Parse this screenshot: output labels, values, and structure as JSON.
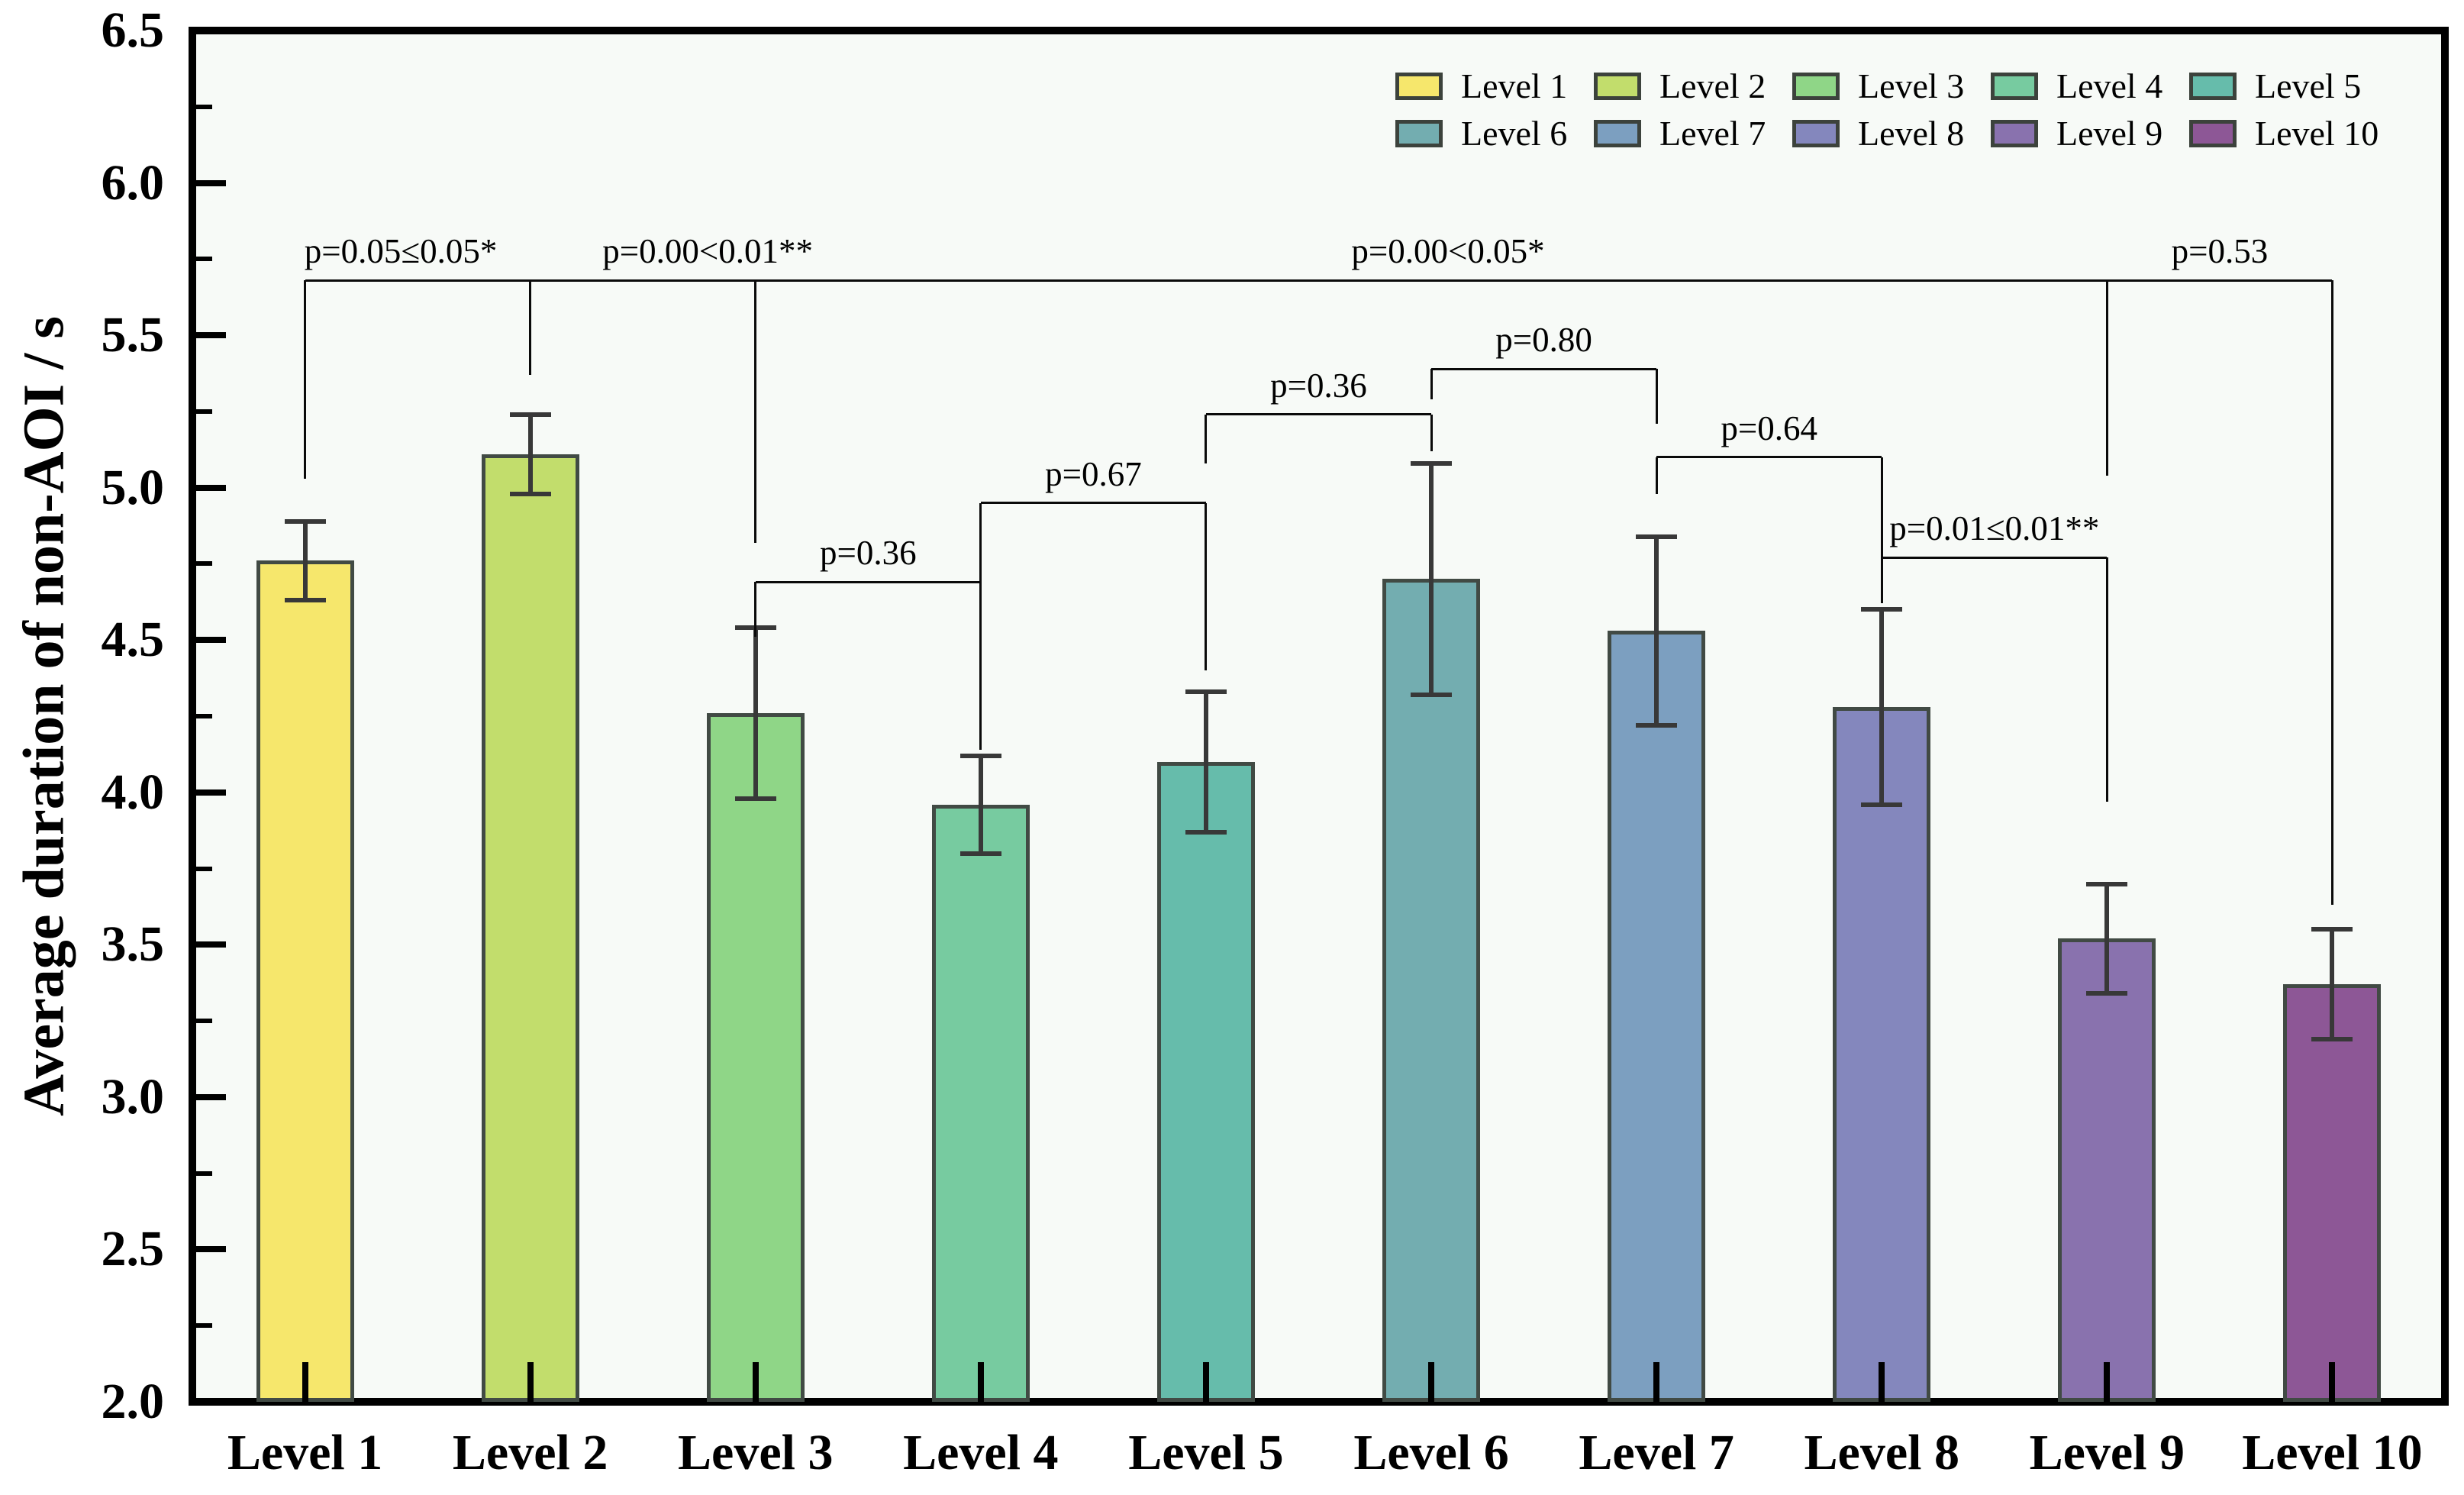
{
  "chart_data": {
    "type": "bar",
    "title": "",
    "ylabel": "Average duration of non-AOI / s",
    "xlabel": "",
    "ylim": [
      2.0,
      6.5
    ],
    "ytick_step": 0.5,
    "ytick_minor_step": 0.25,
    "grid": false,
    "legend_position": "top-right-two-rows",
    "categories": [
      "Level 1",
      "Level 2",
      "Level 3",
      "Level 4",
      "Level 5",
      "Level 6",
      "Level 7",
      "Level 8",
      "Level 9",
      "Level 10"
    ],
    "values": [
      4.76,
      5.11,
      4.26,
      3.96,
      4.1,
      4.7,
      4.53,
      4.28,
      3.52,
      3.37
    ],
    "errors": [
      0.13,
      0.13,
      0.28,
      0.16,
      0.23,
      0.38,
      0.31,
      0.32,
      0.18,
      0.18
    ],
    "bar_colors": [
      "#f6e76c",
      "#c2dd6c",
      "#8fd687",
      "#77cba0",
      "#66bcab",
      "#73adb0",
      "#7c9fc0",
      "#8487bd",
      "#8972ae",
      "#8d5796"
    ],
    "legend_entries": [
      "Level 1",
      "Level 2",
      "Level 3",
      "Level 4",
      "Level 5",
      "Level 6",
      "Level 7",
      "Level 8",
      "Level 9",
      "Level 10"
    ],
    "significance_brackets": [
      {
        "from": 1,
        "to": 2,
        "label": "p=0.05≤0.05*",
        "line_v": 5.68,
        "left_end_v": 5.03,
        "right_end_v": 5.37,
        "label_dx": -22
      },
      {
        "from": 2,
        "to": 3,
        "label": "p=0.00<0.01**",
        "line_v": 5.68,
        "left_end_v": 5.37,
        "right_end_v": 4.82,
        "label_dx": 85
      },
      {
        "from": 3,
        "to": 9,
        "label": "p=0.00<0.05*",
        "line_v": 5.68,
        "left_end_v": 4.82,
        "right_end_v": 5.04,
        "label_dx": 22
      },
      {
        "from": 9,
        "to": 10,
        "label": "p=0.53",
        "line_v": 5.68,
        "left_end_v": 5.04,
        "right_end_v": 3.63,
        "label_dx": 0
      },
      {
        "from": 3,
        "to": 4,
        "label": "p=0.36",
        "line_v": 4.69,
        "left_end_v": 4.51,
        "right_end_v": 4.14,
        "label_dx": 0
      },
      {
        "from": 4,
        "to": 5,
        "label": "p=0.67",
        "line_v": 4.95,
        "left_end_v": 4.14,
        "right_end_v": 4.4,
        "label_dx": 0
      },
      {
        "from": 5,
        "to": 6,
        "label": "p=0.36",
        "line_v": 5.24,
        "left_end_v": 5.08,
        "right_end_v": 5.12,
        "label_dx": 0
      },
      {
        "from": 6,
        "to": 7,
        "label": "p=0.80",
        "line_v": 5.39,
        "left_end_v": 5.29,
        "right_end_v": 5.21,
        "label_dx": 0
      },
      {
        "from": 7,
        "to": 8,
        "label": "p=0.64",
        "line_v": 5.1,
        "left_end_v": 4.98,
        "right_end_v": 4.62,
        "label_dx": 0
      },
      {
        "from": 8,
        "to": 9,
        "label": "p=0.01≤0.01**",
        "line_v": 4.77,
        "left_end_v": 4.64,
        "right_end_v": 3.97,
        "label_dx": 0
      }
    ]
  },
  "style": {
    "plot_bg": "#f7faf7",
    "page_bg": "#ffffff",
    "frame_color": "#000000",
    "bar_edge_color": "#414a44",
    "error_color": "#383838",
    "bracket_color": "#0a0a0a"
  }
}
